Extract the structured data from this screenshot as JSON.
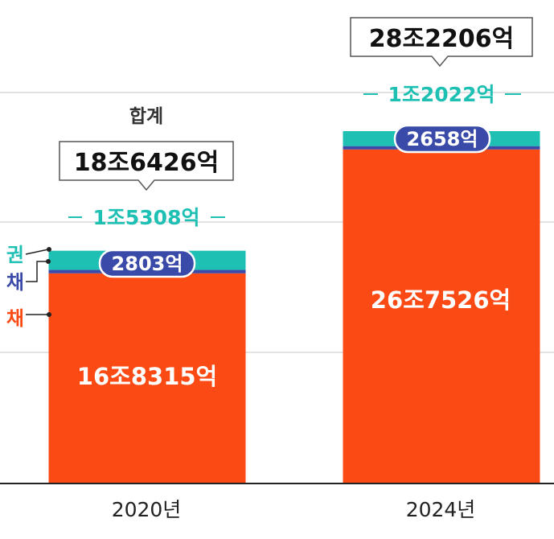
{
  "chart_data": {
    "type": "bar",
    "stacked": true,
    "categories": [
      "2020년",
      "2024년"
    ],
    "series": [
      {
        "name": "채",
        "color": "#fc4a14",
        "values": [
          168315,
          267526
        ],
        "labels": [
          "16조8315억",
          "26조7526억"
        ]
      },
      {
        "name": "채",
        "color": "#3a4aa8",
        "values": [
          2803,
          2658
        ],
        "labels": [
          "2803억",
          "2658억"
        ]
      },
      {
        "name": "권",
        "color": "#1fc0b4",
        "values": [
          15308,
          12022
        ],
        "labels": [
          "1조5308억",
          "1조2022억"
        ]
      }
    ],
    "totals": {
      "caption": "합계",
      "labels": [
        "18조6426억",
        "28조2206억"
      ],
      "values": [
        186426,
        282206
      ]
    },
    "ylim": [
      0,
      300000
    ],
    "grid": true,
    "legend": "left"
  }
}
